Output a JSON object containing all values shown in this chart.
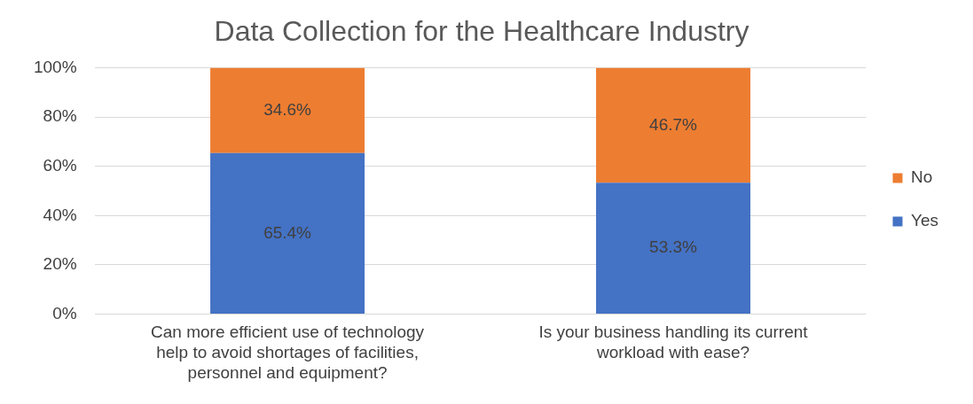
{
  "chart_data": {
    "type": "bar",
    "title": "Data Collection for the Healthcare Industry",
    "categories": [
      "Can more efficient use of technology help to avoid shortages of facilities, personnel and equipment?",
      "Is your business handling its current workload with ease?"
    ],
    "stacked": true,
    "series": [
      {
        "name": "Yes",
        "color": "#4472c4",
        "values": [
          65.4,
          53.3
        ],
        "value_labels": [
          "65.4%",
          "53.3%"
        ]
      },
      {
        "name": "No",
        "color": "#ed7d31",
        "values": [
          34.6,
          46.7
        ],
        "value_labels": [
          "34.6%",
          "46.7%"
        ]
      }
    ],
    "ylim": [
      0,
      100
    ],
    "yticks": [
      {
        "value": 0,
        "label": "0%"
      },
      {
        "value": 20,
        "label": "20%"
      },
      {
        "value": 40,
        "label": "40%"
      },
      {
        "value": 60,
        "label": "60%"
      },
      {
        "value": 80,
        "label": "80%"
      },
      {
        "value": 100,
        "label": "100%"
      }
    ],
    "grid": "y",
    "legend": "right"
  }
}
